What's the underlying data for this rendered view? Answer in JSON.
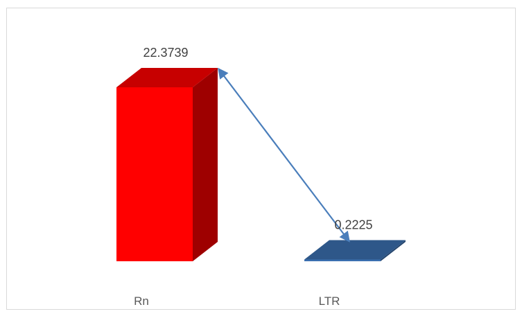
{
  "chart_data": {
    "type": "bar",
    "style": "3d-column",
    "categories": [
      "Rn",
      "LTR"
    ],
    "values": [
      22.3739,
      0.2225
    ],
    "data_labels": [
      "22.3739",
      "0.2225"
    ],
    "colors": {
      "Rn": "#ff0000",
      "LTR": "#3b6fb0",
      "arrow": "#4a7ebb"
    },
    "title": "",
    "xlabel": "",
    "ylabel": "",
    "ylim": [
      0,
      22.3739
    ],
    "grid": false,
    "legend": "none",
    "annotation": "double-headed-arrow"
  }
}
